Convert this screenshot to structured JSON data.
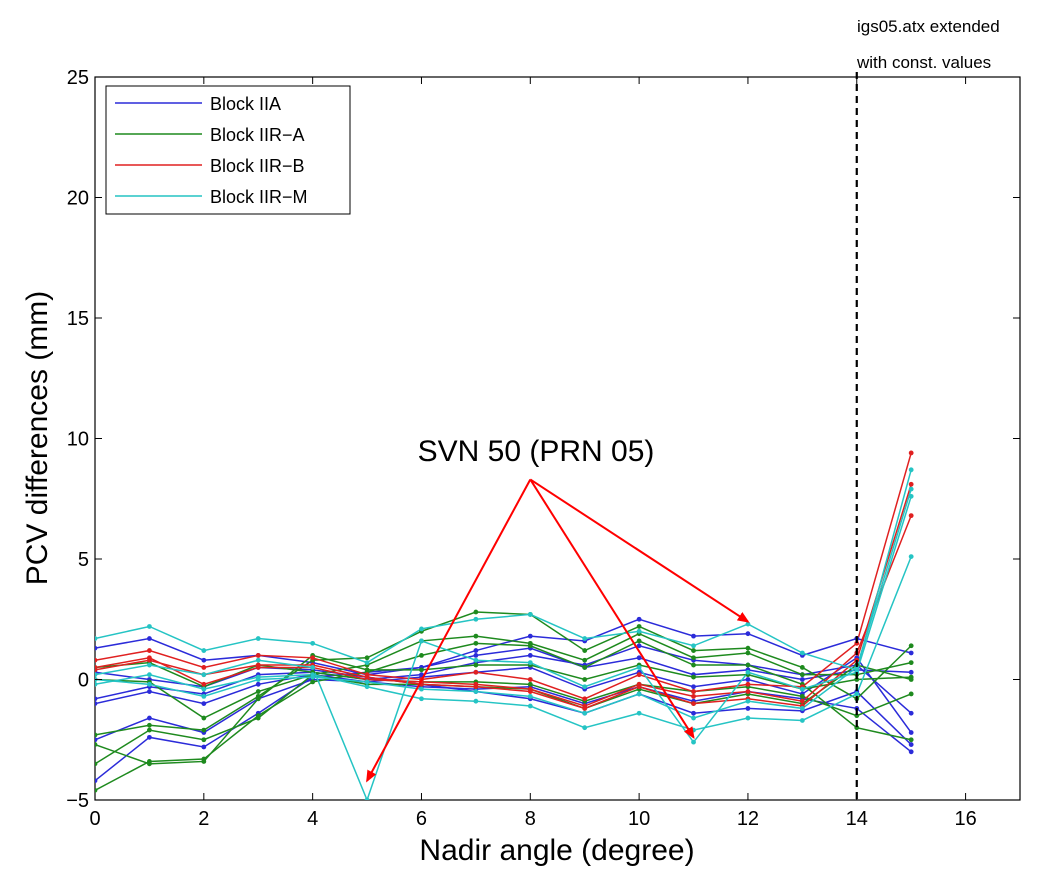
{
  "chart_data": {
    "type": "line",
    "xlabel": "Nadir angle (degree)",
    "ylabel": "PCV differences (mm)",
    "xlim": [
      0,
      17
    ],
    "ylim": [
      -5,
      25
    ],
    "xticks": [
      "0",
      "2",
      "4",
      "6",
      "8",
      "10",
      "12",
      "14",
      "16"
    ],
    "yticks": [
      "−5",
      "0",
      "5",
      "10",
      "15",
      "20",
      "25"
    ],
    "grid": false,
    "legend_position": "top-left",
    "colors": {
      "Block IIA": "#2b2bd9",
      "Block IIR-A": "#1e8a1e",
      "Block IIR-B": "#e02020",
      "Block IIR-M": "#25c4c4"
    },
    "legend": [
      "Block IIA",
      "Block IIR−A",
      "Block IIR−B",
      "Block IIR−M"
    ],
    "x": [
      0,
      1,
      2,
      3,
      4,
      5,
      6,
      7,
      8,
      9,
      10,
      11,
      12,
      13,
      14,
      15
    ],
    "series": [
      {
        "group": "Block IIA",
        "values": [
          1.3,
          1.7,
          0.8,
          1.0,
          0.7,
          0.2,
          0.5,
          1.2,
          1.8,
          1.6,
          2.5,
          1.8,
          1.9,
          1.0,
          1.7,
          1.1
        ]
      },
      {
        "group": "Block IIA",
        "values": [
          -0.8,
          -0.3,
          -0.6,
          0.2,
          0.3,
          0.0,
          0.2,
          0.7,
          1.0,
          0.6,
          1.4,
          0.8,
          0.6,
          0.2,
          0.6,
          -1.4
        ]
      },
      {
        "group": "Block IIA",
        "values": [
          -2.5,
          -1.6,
          -2.2,
          -0.8,
          0.0,
          -0.1,
          -0.3,
          -0.4,
          -0.3,
          -1.0,
          -0.3,
          -0.9,
          -0.5,
          -0.8,
          -1.2,
          -3.0
        ]
      },
      {
        "group": "Block IIA",
        "values": [
          -4.2,
          -2.4,
          -2.8,
          -1.4,
          0.1,
          0.3,
          0.5,
          1.0,
          1.3,
          0.5,
          0.9,
          0.2,
          0.4,
          0.0,
          0.4,
          0.3
        ]
      },
      {
        "group": "Block IIA",
        "values": [
          0.3,
          0.0,
          -0.3,
          0.5,
          0.4,
          0.1,
          -0.2,
          -0.5,
          -0.8,
          -1.4,
          -0.6,
          -1.4,
          -1.2,
          -1.3,
          -0.5,
          -2.7
        ]
      },
      {
        "group": "Block IIA",
        "values": [
          -1.0,
          -0.5,
          -1.0,
          -0.2,
          0.2,
          -0.1,
          0.1,
          0.3,
          0.5,
          -0.4,
          0.3,
          -0.3,
          0.0,
          -0.6,
          0.9,
          -2.2
        ]
      },
      {
        "group": "Block IIR-A",
        "values": [
          -2.3,
          -1.9,
          -2.1,
          -0.7,
          0.8,
          0.9,
          2.0,
          2.8,
          2.7,
          1.2,
          2.2,
          1.2,
          1.3,
          0.5,
          -0.8,
          1.4
        ]
      },
      {
        "group": "Block IIR-A",
        "values": [
          -3.5,
          -2.1,
          -2.5,
          -1.6,
          0.2,
          0.6,
          1.6,
          1.8,
          1.5,
          0.8,
          1.9,
          0.9,
          1.1,
          0.2,
          0.2,
          0.7
        ]
      },
      {
        "group": "Block IIR-A",
        "values": [
          -4.6,
          -3.4,
          -3.3,
          -1.5,
          -0.1,
          0.3,
          1.0,
          1.5,
          1.4,
          0.5,
          1.6,
          0.6,
          0.6,
          -0.2,
          -2.0,
          -2.5
        ]
      },
      {
        "group": "Block IIR-A",
        "values": [
          -2.7,
          -3.5,
          -3.4,
          -0.8,
          1.0,
          0.4,
          0.4,
          0.6,
          0.6,
          0.0,
          0.6,
          0.1,
          0.2,
          -0.4,
          0.0,
          0.1
        ]
      },
      {
        "group": "Block IIR-A",
        "values": [
          0.5,
          0.7,
          -0.3,
          0.6,
          0.3,
          0.0,
          -0.1,
          -0.1,
          -0.2,
          -0.9,
          -0.2,
          -0.5,
          -0.3,
          -0.7,
          -1.5,
          -0.6
        ]
      },
      {
        "group": "Block IIR-A",
        "values": [
          0.0,
          -0.1,
          -1.6,
          -0.5,
          0.2,
          -0.2,
          -0.2,
          -0.3,
          -0.4,
          -1.2,
          -0.4,
          -1.0,
          -0.6,
          -1.0,
          0.6,
          0.0
        ]
      },
      {
        "group": "Block IIR-B",
        "values": [
          0.8,
          1.2,
          0.5,
          1.0,
          0.9,
          0.2,
          0.0,
          0.3,
          0.0,
          -0.8,
          0.2,
          -0.5,
          -0.2,
          -0.3,
          1.5,
          9.4
        ]
      },
      {
        "group": "Block IIR-B",
        "values": [
          0.4,
          0.8,
          0.2,
          0.6,
          0.6,
          0.1,
          -0.2,
          -0.3,
          -0.5,
          -1.2,
          -0.3,
          -1.0,
          -0.8,
          -1.1,
          0.8,
          8.1
        ]
      },
      {
        "group": "Block IIR-B",
        "values": [
          0.5,
          0.9,
          -0.2,
          0.5,
          0.5,
          0.0,
          -0.1,
          -0.2,
          -0.4,
          -1.1,
          -0.2,
          -0.7,
          -0.5,
          -0.9,
          1.1,
          6.8
        ]
      },
      {
        "group": "Block IIR-M",
        "values": [
          1.7,
          2.2,
          1.2,
          1.7,
          1.5,
          0.7,
          2.1,
          2.5,
          2.7,
          1.7,
          2.0,
          1.4,
          2.3,
          1.1,
          0.4,
          8.7
        ]
      },
      {
        "group": "Block IIR-M",
        "values": [
          0.2,
          0.6,
          0.2,
          0.8,
          0.5,
          -5.0,
          1.6,
          0.8,
          0.7,
          -0.3,
          0.5,
          -2.6,
          0.3,
          -0.4,
          0.3,
          7.6
        ]
      },
      {
        "group": "Block IIR-M",
        "values": [
          -0.2,
          0.2,
          -0.4,
          0.1,
          0.2,
          -0.3,
          -0.8,
          -0.9,
          -1.1,
          -2.0,
          -1.4,
          -2.1,
          -1.6,
          -1.7,
          -0.6,
          5.1
        ]
      },
      {
        "group": "Block IIR-M",
        "values": [
          0.0,
          -0.2,
          -0.7,
          0.0,
          0.1,
          -0.1,
          -0.4,
          -0.5,
          -0.7,
          -1.4,
          -0.6,
          -1.6,
          -0.9,
          -1.2,
          0.5,
          7.9
        ]
      }
    ],
    "annotation": {
      "text": "SVN 50 (PRN 05)",
      "arrow_origin": [
        8,
        8.3
      ],
      "arrow_targets": [
        [
          5.0,
          -4.2
        ],
        [
          11.0,
          -2.4
        ],
        [
          12.0,
          2.4
        ]
      ],
      "color": "#ff0000"
    },
    "vline": {
      "x": 14,
      "label_line1": "igs05.atx extended",
      "label_line2": "with const. values"
    }
  }
}
